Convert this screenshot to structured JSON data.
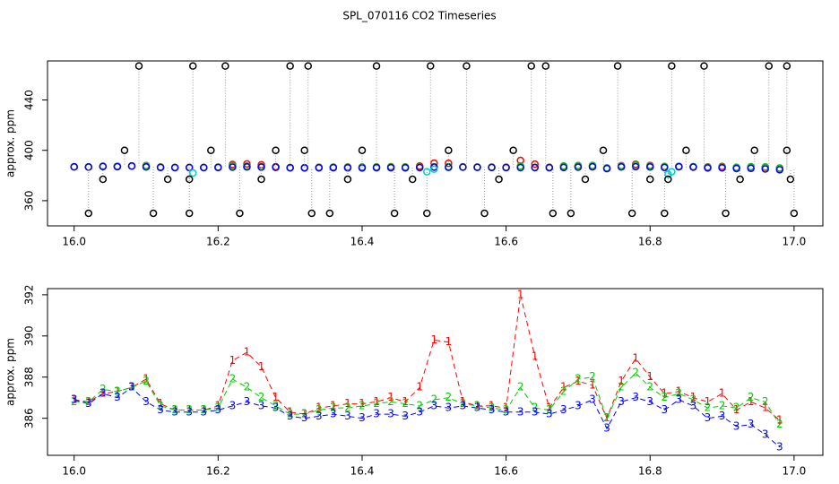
{
  "chart_data": [
    {
      "type": "scatter",
      "title": "SPL_070116  CO2 Timeseries",
      "y_label": "approx. ppm",
      "xlim": [
        15.963,
        17.04
      ],
      "ylim": [
        340,
        471
      ],
      "xticks": [
        {
          "value": 16,
          "label": "16.0"
        },
        {
          "value": 16.2,
          "label": "16.2"
        },
        {
          "value": 16.4,
          "label": "16.4"
        },
        {
          "value": 16.6,
          "label": "16.6"
        },
        {
          "value": 16.8,
          "label": "16.8"
        },
        {
          "value": 17,
          "label": "17.0"
        }
      ],
      "yticks": [
        360,
        400,
        440
      ],
      "x": [
        16.0,
        16.02,
        16.04,
        16.06,
        16.08,
        16.1,
        16.12,
        16.14,
        16.16,
        16.18,
        16.2,
        16.22,
        16.24,
        16.26,
        16.28,
        16.3,
        16.32,
        16.34,
        16.36,
        16.38,
        16.4,
        16.42,
        16.44,
        16.46,
        16.48,
        16.5,
        16.52,
        16.54,
        16.56,
        16.58,
        16.6,
        16.62,
        16.64,
        16.66,
        16.68,
        16.7,
        16.72,
        16.74,
        16.76,
        16.78,
        16.8,
        16.82,
        16.84,
        16.86,
        16.88,
        16.9,
        16.92,
        16.94,
        16.96,
        16.98
      ],
      "series": [
        {
          "color": "#ff0000",
          "values": [
            386.9,
            386.8,
            387.2,
            387.3,
            387.5,
            387.9,
            386.7,
            386.4,
            386.4,
            386.4,
            386.6,
            388.8,
            389.2,
            388.5,
            387.0,
            386.3,
            386.2,
            386.5,
            386.6,
            386.7,
            386.7,
            386.8,
            387.0,
            386.8,
            387.5,
            389.8,
            389.7,
            386.8,
            386.6,
            386.6,
            386.5,
            392.0,
            389.0,
            386.5,
            387.5,
            387.8,
            387.6,
            386.0,
            387.8,
            388.9,
            388.0,
            387.2,
            387.3,
            387.0,
            386.8,
            387.2,
            386.4,
            386.8,
            386.5,
            385.9
          ]
        },
        {
          "color": "#00cd00",
          "values": [
            386.8,
            386.8,
            387.4,
            387.3,
            387.5,
            387.8,
            386.6,
            386.4,
            386.4,
            386.4,
            386.5,
            387.9,
            387.5,
            387.0,
            386.6,
            386.2,
            386.2,
            386.4,
            386.5,
            386.5,
            386.6,
            386.7,
            386.8,
            386.7,
            386.6,
            386.9,
            387.0,
            386.7,
            386.6,
            386.5,
            386.4,
            387.5,
            386.5,
            386.4,
            387.3,
            387.9,
            388.0,
            386.0,
            387.5,
            388.2,
            387.5,
            387.0,
            387.2,
            386.9,
            386.5,
            386.6,
            386.5,
            387.0,
            386.8,
            385.7
          ]
        },
        {
          "color": "#0000ff",
          "values": [
            386.9,
            386.7,
            387.2,
            387.0,
            387.5,
            386.8,
            386.4,
            386.3,
            386.3,
            386.3,
            386.4,
            386.6,
            386.8,
            386.6,
            386.5,
            386.1,
            386.0,
            386.1,
            386.2,
            386.1,
            386.0,
            386.2,
            386.2,
            386.1,
            386.3,
            386.6,
            386.5,
            386.6,
            386.5,
            386.4,
            386.3,
            386.3,
            386.3,
            386.2,
            386.4,
            386.6,
            386.9,
            385.5,
            386.8,
            387.0,
            386.8,
            386.4,
            386.9,
            386.6,
            386.0,
            386.1,
            385.6,
            385.7,
            385.2,
            384.6
          ]
        },
        {
          "color": "#00cccc",
          "x": [
            16.165,
            16.49,
            16.5,
            16.825,
            16.83
          ],
          "values": [
            382,
            383,
            385,
            381,
            383
          ]
        },
        {
          "color": "#000000",
          "x": [
            16.02,
            16.04,
            16.07,
            16.09,
            16.11,
            16.13,
            16.16,
            16.16,
            16.165,
            16.19,
            16.21,
            16.23,
            16.26,
            16.28,
            16.3,
            16.32,
            16.325,
            16.33,
            16.355,
            16.38,
            16.4,
            16.42,
            16.445,
            16.47,
            16.49,
            16.495,
            16.52,
            16.545,
            16.57,
            16.59,
            16.61,
            16.635,
            16.655,
            16.665,
            16.69,
            16.71,
            16.735,
            16.755,
            16.775,
            16.8,
            16.82,
            16.825,
            16.83,
            16.85,
            16.875,
            16.905,
            16.925,
            16.945,
            16.965,
            16.99,
            16.99,
            16.995,
            17.0
          ],
          "values": [
            350,
            377,
            400,
            467,
            350,
            377,
            350,
            377,
            467,
            400,
            467,
            350,
            377,
            400,
            467,
            400,
            467,
            350,
            350,
            377,
            400,
            467,
            350,
            377,
            350,
            467,
            400,
            467,
            350,
            377,
            400,
            467,
            467,
            350,
            350,
            377,
            400,
            467,
            350,
            377,
            350,
            377,
            467,
            400,
            467,
            350,
            377,
            400,
            467,
            467,
            400,
            377,
            350
          ]
        }
      ]
    },
    {
      "type": "line",
      "y_label": "approx. ppm",
      "xlim": [
        15.963,
        17.04
      ],
      "ylim": [
        384.2,
        392.3
      ],
      "xticks": [
        {
          "value": 16,
          "label": "16.0"
        },
        {
          "value": 16.2,
          "label": "16.2"
        },
        {
          "value": 16.4,
          "label": "16.4"
        },
        {
          "value": 16.6,
          "label": "16.6"
        },
        {
          "value": 16.8,
          "label": "16.8"
        },
        {
          "value": 17,
          "label": "17.0"
        }
      ],
      "yticks": [
        386,
        388,
        390,
        392
      ],
      "x": [
        16.0,
        16.02,
        16.04,
        16.06,
        16.08,
        16.1,
        16.12,
        16.14,
        16.16,
        16.18,
        16.2,
        16.22,
        16.24,
        16.26,
        16.28,
        16.3,
        16.32,
        16.34,
        16.36,
        16.38,
        16.4,
        16.42,
        16.44,
        16.46,
        16.48,
        16.5,
        16.52,
        16.54,
        16.56,
        16.58,
        16.6,
        16.62,
        16.64,
        16.66,
        16.68,
        16.7,
        16.72,
        16.74,
        16.76,
        16.78,
        16.8,
        16.82,
        16.84,
        16.86,
        16.88,
        16.9,
        16.92,
        16.94,
        16.96,
        16.98
      ],
      "series": [
        {
          "pch": "1",
          "color": "#ff0000",
          "values": [
            386.9,
            386.8,
            387.2,
            387.3,
            387.5,
            387.9,
            386.7,
            386.4,
            386.4,
            386.4,
            386.6,
            388.8,
            389.2,
            388.5,
            387.0,
            386.3,
            386.2,
            386.5,
            386.6,
            386.7,
            386.7,
            386.8,
            387.0,
            386.8,
            387.5,
            389.8,
            389.7,
            386.8,
            386.6,
            386.6,
            386.5,
            392.0,
            389.0,
            386.5,
            387.5,
            387.8,
            387.6,
            386.0,
            387.8,
            388.9,
            388.0,
            387.2,
            387.3,
            387.0,
            386.8,
            387.2,
            386.4,
            386.8,
            386.5,
            385.9
          ]
        },
        {
          "pch": "2",
          "color": "#00cd00",
          "values": [
            386.8,
            386.8,
            387.4,
            387.3,
            387.5,
            387.8,
            386.6,
            386.4,
            386.4,
            386.4,
            386.5,
            387.9,
            387.5,
            387.0,
            386.6,
            386.2,
            386.2,
            386.4,
            386.5,
            386.5,
            386.6,
            386.7,
            386.8,
            386.7,
            386.6,
            386.9,
            387.0,
            386.7,
            386.6,
            386.5,
            386.4,
            387.5,
            386.5,
            386.4,
            387.3,
            387.9,
            388.0,
            386.0,
            387.5,
            388.2,
            387.5,
            387.0,
            387.2,
            386.9,
            386.5,
            386.6,
            386.5,
            387.0,
            386.8,
            385.7
          ]
        },
        {
          "pch": "3",
          "color": "#0000ff",
          "values": [
            386.9,
            386.7,
            387.2,
            387.0,
            387.5,
            386.8,
            386.4,
            386.3,
            386.3,
            386.3,
            386.4,
            386.6,
            386.8,
            386.6,
            386.5,
            386.1,
            386.0,
            386.1,
            386.2,
            386.1,
            386.0,
            386.2,
            386.2,
            386.1,
            386.3,
            386.6,
            386.5,
            386.6,
            386.5,
            386.4,
            386.3,
            386.3,
            386.3,
            386.2,
            386.4,
            386.6,
            386.9,
            385.5,
            386.8,
            387.0,
            386.8,
            386.4,
            386.9,
            386.6,
            386.0,
            386.1,
            385.6,
            385.7,
            385.2,
            384.6
          ]
        }
      ]
    }
  ]
}
